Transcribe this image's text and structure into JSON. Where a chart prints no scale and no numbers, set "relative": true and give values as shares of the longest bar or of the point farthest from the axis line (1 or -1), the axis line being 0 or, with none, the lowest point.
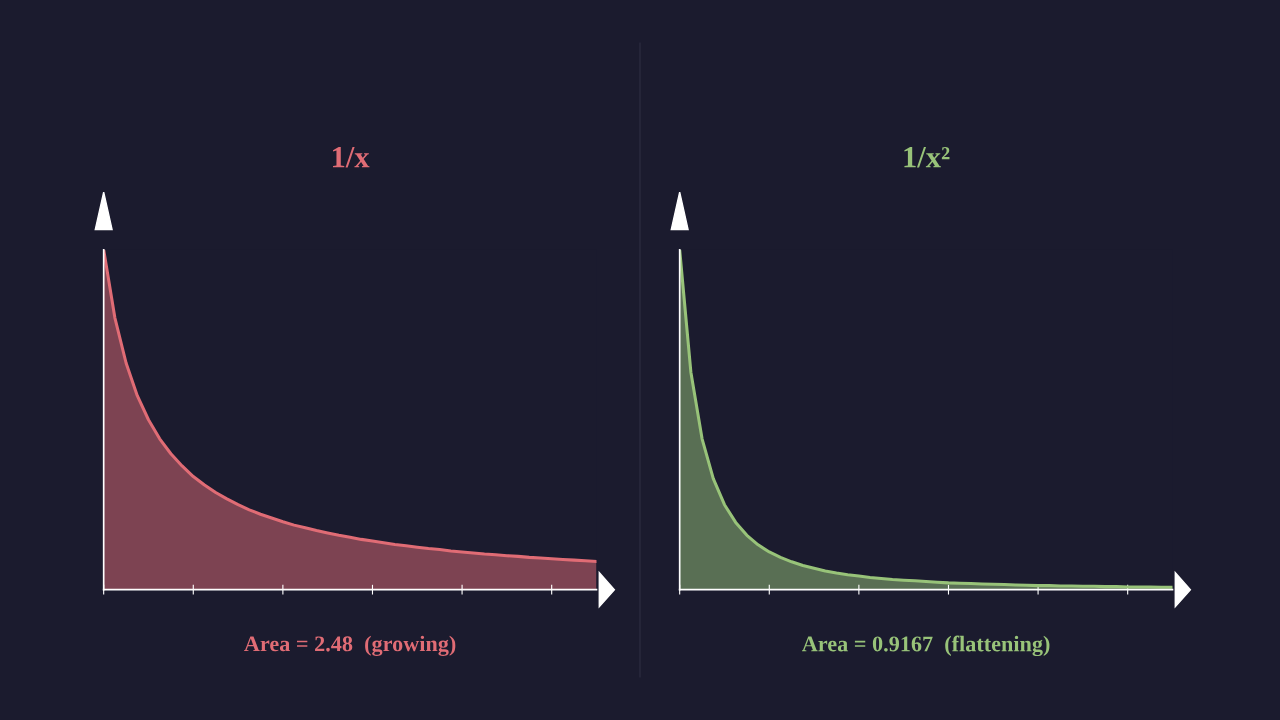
{
  "chart_data": [
    {
      "type": "area",
      "title": "1/x",
      "relative": true,
      "annotations": [
        "Area = 2.48  (growing)"
      ],
      "categories": [
        null,
        null,
        null,
        null,
        null,
        null,
        null,
        null,
        null,
        null,
        null,
        null,
        null,
        null,
        null,
        null,
        null,
        null,
        null,
        null,
        null,
        null,
        null,
        null,
        null,
        null,
        null,
        null,
        null,
        null,
        null,
        null,
        null,
        null,
        null,
        null,
        null,
        null,
        null,
        null,
        null,
        null,
        null,
        null,
        null
      ],
      "series": [
        {
          "color": "#e06c75",
          "values": [
            1,
            0.8,
            0.667,
            0.571,
            0.5,
            0.444,
            0.4,
            0.364,
            0.333,
            0.308,
            0.286,
            0.267,
            0.25,
            0.235,
            0.222,
            0.211,
            0.2,
            0.19,
            0.182,
            0.174,
            0.167,
            0.16,
            0.154,
            0.148,
            0.143,
            0.138,
            0.133,
            0.129,
            0.125,
            0.121,
            0.118,
            0.114,
            0.111,
            0.108,
            0.105,
            0.103,
            0.1,
            0.098,
            0.095,
            0.093,
            0.091,
            0.089,
            0.087,
            0.085,
            0.083
          ]
        }
      ]
    },
    {
      "type": "area",
      "title": "1/x²",
      "relative": true,
      "annotations": [
        "Area = 0.9167  (flattening)"
      ],
      "categories": [
        null,
        null,
        null,
        null,
        null,
        null,
        null,
        null,
        null,
        null,
        null,
        null,
        null,
        null,
        null,
        null,
        null,
        null,
        null,
        null,
        null,
        null,
        null,
        null,
        null,
        null,
        null,
        null,
        null,
        null,
        null,
        null,
        null,
        null,
        null,
        null,
        null,
        null,
        null,
        null,
        null,
        null,
        null,
        null,
        null
      ],
      "series": [
        {
          "color": "#98c379",
          "values": [
            1,
            0.64,
            0.444,
            0.327,
            0.25,
            0.198,
            0.16,
            0.132,
            0.111,
            0.095,
            0.082,
            0.071,
            0.063,
            0.055,
            0.049,
            0.044,
            0.04,
            0.036,
            0.033,
            0.03,
            0.028,
            0.026,
            0.024,
            0.022,
            0.02,
            0.019,
            0.018,
            0.017,
            0.016,
            0.015,
            0.014,
            0.013,
            0.012,
            0.012,
            0.011,
            0.011,
            0.01,
            0.01,
            0.009,
            0.009,
            0.008,
            0.008,
            0.008,
            0.007,
            0.007
          ]
        }
      ]
    }
  ]
}
